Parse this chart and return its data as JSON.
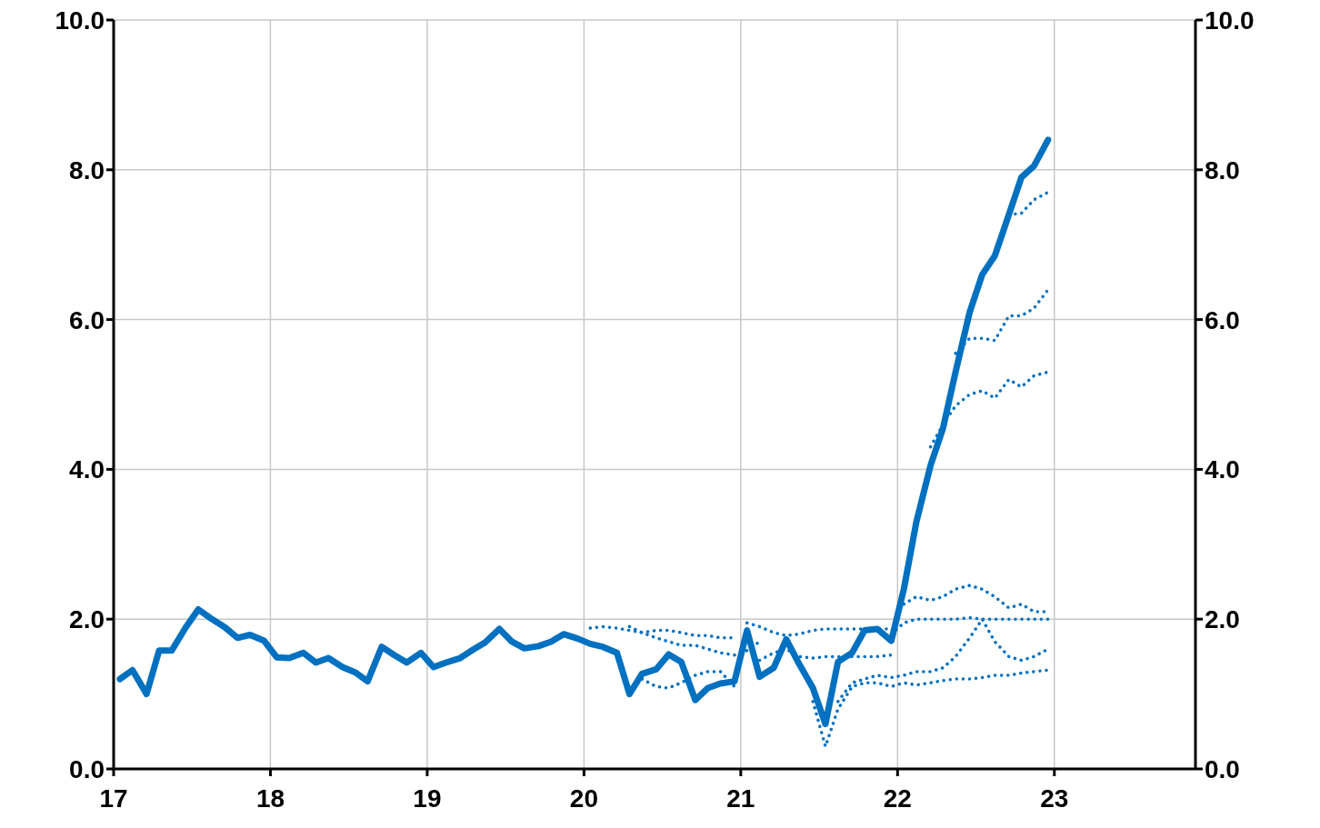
{
  "chart_data": {
    "type": "line",
    "xlim": [
      17,
      23.9
    ],
    "xticks": [
      17,
      18,
      19,
      20,
      21,
      22,
      23
    ],
    "ylim": [
      0,
      10
    ],
    "yticks": [
      {
        "value": 0,
        "label": "0.0"
      },
      {
        "value": 2,
        "label": "2.0"
      },
      {
        "value": 4,
        "label": "4.0"
      },
      {
        "value": 6,
        "label": "6.0"
      },
      {
        "value": 8,
        "label": "8.0"
      },
      {
        "value": 10,
        "label": "10.0"
      }
    ],
    "y2lim": [
      0,
      10
    ],
    "y2ticks": [
      {
        "value": 0,
        "label": "0.0"
      },
      {
        "value": 2,
        "label": "2.0"
      },
      {
        "value": 4,
        "label": "4.0"
      },
      {
        "value": 6,
        "label": "6.0"
      },
      {
        "value": 8,
        "label": "8.0"
      },
      {
        "value": 10,
        "label": "10.0"
      }
    ],
    "grid": true,
    "marker": "none",
    "series": [
      {
        "color": "#0070c0",
        "line_style": "solid",
        "x": [
          17.04,
          17.12,
          17.21,
          17.29,
          17.37,
          17.46,
          17.54,
          17.62,
          17.71,
          17.79,
          17.87,
          17.96,
          18.04,
          18.12,
          18.21,
          18.29,
          18.37,
          18.46,
          18.54,
          18.62,
          18.71,
          18.79,
          18.87,
          18.96,
          19.04,
          19.12,
          19.21,
          19.29,
          19.37,
          19.46,
          19.54,
          19.62,
          19.71,
          19.79,
          19.87,
          19.96,
          20.04,
          20.12,
          20.21,
          20.29,
          20.37,
          20.46,
          20.54,
          20.62,
          20.71,
          20.79,
          20.87,
          20.96,
          21.04,
          21.12,
          21.21,
          21.29,
          21.37,
          21.46,
          21.54,
          21.62,
          21.71,
          21.79,
          21.87,
          21.96,
          22.04,
          22.12,
          22.21,
          22.29,
          22.37,
          22.46,
          22.54,
          22.62,
          22.71,
          22.79,
          22.87,
          22.96
        ],
        "values": [
          1.2,
          1.32,
          1.0,
          1.58,
          1.58,
          1.89,
          2.13,
          2.01,
          1.89,
          1.75,
          1.79,
          1.71,
          1.49,
          1.48,
          1.55,
          1.42,
          1.48,
          1.36,
          1.29,
          1.17,
          1.63,
          1.52,
          1.42,
          1.55,
          1.36,
          1.42,
          1.48,
          1.59,
          1.69,
          1.87,
          1.7,
          1.61,
          1.64,
          1.7,
          1.8,
          1.74,
          1.67,
          1.63,
          1.55,
          1.0,
          1.27,
          1.33,
          1.53,
          1.43,
          0.92,
          1.08,
          1.14,
          1.17,
          1.85,
          1.23,
          1.35,
          1.73,
          1.41,
          1.08,
          0.6,
          1.43,
          1.55,
          1.85,
          1.87,
          1.71,
          2.4,
          3.3,
          4.05,
          4.55,
          5.3,
          6.1,
          6.6,
          6.85,
          7.4,
          7.9,
          8.05,
          8.4
        ]
      },
      {
        "color": "#0070c0",
        "line_style": "dotted",
        "x": [
          20.04,
          20.12,
          20.21,
          20.29,
          20.37,
          20.46,
          20.54,
          20.62,
          20.71,
          20.79,
          20.87,
          20.96
        ],
        "values": [
          1.88,
          1.9,
          1.88,
          1.85,
          1.82,
          1.85,
          1.85,
          1.82,
          1.78,
          1.78,
          1.75,
          1.75
        ]
      },
      {
        "color": "#0070c0",
        "line_style": "dotted",
        "x": [
          20.29,
          20.37,
          20.46,
          20.54,
          20.62,
          20.71,
          20.79,
          20.87,
          20.96,
          21.04,
          21.12
        ],
        "values": [
          1.9,
          1.82,
          1.75,
          1.7,
          1.65,
          1.65,
          1.6,
          1.55,
          1.52,
          1.58,
          1.7
        ]
      },
      {
        "color": "#0070c0",
        "line_style": "dotted",
        "x": [
          20.37,
          20.46,
          20.54,
          20.62,
          20.71,
          20.79,
          20.87,
          20.96
        ],
        "values": [
          1.2,
          1.1,
          1.08,
          1.15,
          1.25,
          1.3,
          1.3,
          1.1
        ]
      },
      {
        "color": "#0070c0",
        "line_style": "dotted",
        "x": [
          21.04,
          21.12,
          21.21,
          21.29,
          21.37,
          21.46,
          21.54,
          21.62,
          21.71,
          21.79,
          21.87,
          21.96
        ],
        "values": [
          1.95,
          1.9,
          1.82,
          1.78,
          1.8,
          1.85,
          1.87,
          1.87,
          1.87,
          1.87,
          1.87,
          1.87
        ]
      },
      {
        "color": "#0070c0",
        "line_style": "dotted",
        "x": [
          21.12,
          21.21,
          21.29,
          21.37,
          21.46,
          21.54,
          21.62,
          21.71,
          21.79,
          21.87,
          21.96
        ],
        "values": [
          1.45,
          1.55,
          1.6,
          1.5,
          1.48,
          1.5,
          1.5,
          1.5,
          1.5,
          1.5,
          1.52
        ]
      },
      {
        "color": "#0070c0",
        "line_style": "dotted",
        "x": [
          21.46,
          21.54,
          21.62,
          21.71,
          21.79,
          21.87,
          21.96,
          22.04,
          22.12,
          22.21,
          22.29,
          22.37,
          22.46,
          22.54,
          22.62,
          22.71,
          22.79,
          22.87,
          22.96
        ],
        "values": [
          0.9,
          0.3,
          0.8,
          1.1,
          1.15,
          1.15,
          1.1,
          1.15,
          1.12,
          1.15,
          1.18,
          1.2,
          1.2,
          1.22,
          1.25,
          1.25,
          1.28,
          1.3,
          1.32
        ]
      },
      {
        "color": "#0070c0",
        "line_style": "dotted",
        "x": [
          21.62,
          21.71,
          21.79,
          21.87,
          21.96,
          22.04,
          22.12,
          22.21,
          22.29,
          22.37,
          22.46,
          22.54,
          22.62,
          22.71,
          22.79,
          22.87,
          22.96
        ],
        "values": [
          0.9,
          1.15,
          1.2,
          1.25,
          1.22,
          1.25,
          1.3,
          1.3,
          1.35,
          1.5,
          1.75,
          2.0,
          1.7,
          1.5,
          1.45,
          1.5,
          1.6
        ]
      },
      {
        "color": "#0070c0",
        "line_style": "dotted",
        "x": [
          22.04,
          22.12,
          22.21,
          22.29,
          22.37,
          22.46,
          22.54,
          22.62,
          22.71,
          22.79,
          22.87,
          22.96
        ],
        "values": [
          2.2,
          2.3,
          2.25,
          2.3,
          2.4,
          2.45,
          2.4,
          2.3,
          2.15,
          2.2,
          2.1,
          2.1
        ]
      },
      {
        "color": "#0070c0",
        "line_style": "dotted",
        "x": [
          21.96,
          22.04,
          22.12,
          22.21,
          22.29,
          22.37,
          22.46,
          22.54,
          22.62,
          22.71,
          22.79,
          22.87,
          22.96
        ],
        "values": [
          1.8,
          1.95,
          2.0,
          2.0,
          2.0,
          2.0,
          2.02,
          2.0,
          2.0,
          2.0,
          2.0,
          2.0,
          2.0
        ]
      },
      {
        "color": "#0070c0",
        "line_style": "dotted",
        "x": [
          22.21,
          22.29,
          22.37,
          22.46,
          22.54,
          22.62,
          22.71,
          22.79,
          22.87,
          22.96
        ],
        "values": [
          4.3,
          4.6,
          4.85,
          5.0,
          5.05,
          4.95,
          5.2,
          5.1,
          5.25,
          5.3
        ]
      },
      {
        "color": "#0070c0",
        "line_style": "dotted",
        "x": [
          22.37,
          22.46,
          22.54,
          22.62,
          22.71,
          22.79,
          22.87,
          22.96
        ],
        "values": [
          5.55,
          5.75,
          5.75,
          5.72,
          6.05,
          6.05,
          6.15,
          6.4
        ]
      },
      {
        "color": "#0070c0",
        "line_style": "dotted",
        "x": [
          22.71,
          22.79,
          22.87,
          22.96
        ],
        "values": [
          7.4,
          7.42,
          7.6,
          7.7
        ]
      }
    ]
  }
}
